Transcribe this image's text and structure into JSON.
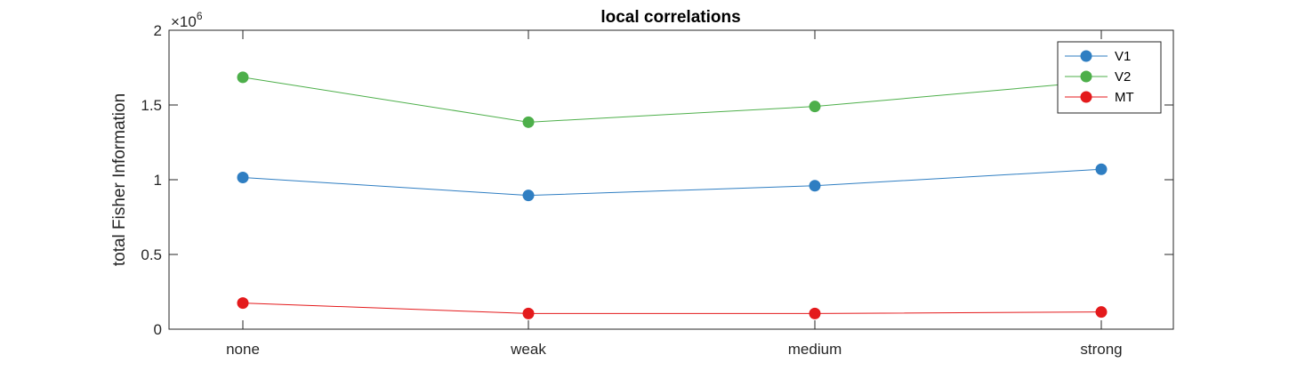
{
  "chart_data": {
    "type": "line",
    "title": "local correlations",
    "xlabel": "",
    "ylabel": "total Fisher Information",
    "categories": [
      "none",
      "weak",
      "medium",
      "strong"
    ],
    "y_multiplier_base": "×10",
    "y_multiplier_exponent": "6",
    "ylim": [
      0,
      2
    ],
    "yticks": [
      0,
      0.5,
      1,
      1.5,
      2
    ],
    "ytick_labels": [
      "0",
      "0.5",
      "1",
      "1.5",
      "2"
    ],
    "grid": false,
    "legend_position": "top-right",
    "series": [
      {
        "name": "V1",
        "color": "#2f7ec2",
        "values": [
          1.015,
          0.895,
          0.96,
          1.07
        ]
      },
      {
        "name": "V2",
        "color": "#4daf4a",
        "values": [
          1.685,
          1.385,
          1.49,
          1.66
        ]
      },
      {
        "name": "MT",
        "color": "#e41a1c",
        "values": [
          0.175,
          0.105,
          0.105,
          0.115
        ]
      }
    ]
  }
}
